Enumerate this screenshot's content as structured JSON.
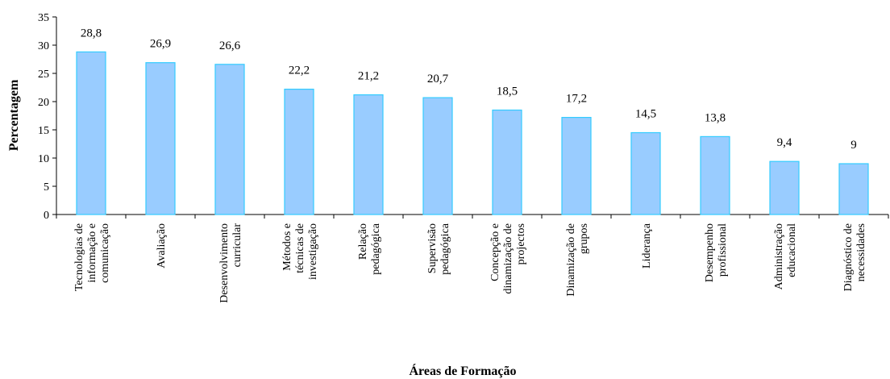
{
  "chart_data": {
    "type": "bar",
    "title": "",
    "xlabel": "Áreas de Formação",
    "ylabel": "Percentagem",
    "ylim": [
      0,
      35
    ],
    "yticks": [
      "0",
      "5",
      "10",
      "15",
      "20",
      "25",
      "30",
      "35"
    ],
    "grid": false,
    "legend": "none",
    "bar_color": "#99ccff",
    "bar_edge_color": "#33ccff",
    "categories": [
      [
        "Tecnologias de",
        "informação e",
        "comunicação"
      ],
      [
        "Avaliação"
      ],
      [
        "Desenvolvimento",
        "curricular"
      ],
      [
        "Métodos e",
        "técnicas de",
        "investigação"
      ],
      [
        "Relação",
        "pedagógica"
      ],
      [
        "Supervisão",
        "pedagógica"
      ],
      [
        "Concepção e",
        "dinamização de",
        "projectos"
      ],
      [
        "Dinamização de",
        "grupos"
      ],
      [
        "Liderança"
      ],
      [
        "Desempenho",
        "profissional"
      ],
      [
        "Administração",
        "educacional"
      ],
      [
        "Diagnóstico de",
        "necessidades"
      ]
    ],
    "values": [
      28.8,
      26.9,
      26.6,
      22.2,
      21.2,
      20.7,
      18.5,
      17.2,
      14.5,
      13.8,
      9.4,
      9
    ],
    "data_labels": [
      "28,8",
      "26,9",
      "26,6",
      "22,2",
      "21,2",
      "20,7",
      "18,5",
      "17,2",
      "14,5",
      "13,8",
      "9,4",
      "9"
    ]
  }
}
